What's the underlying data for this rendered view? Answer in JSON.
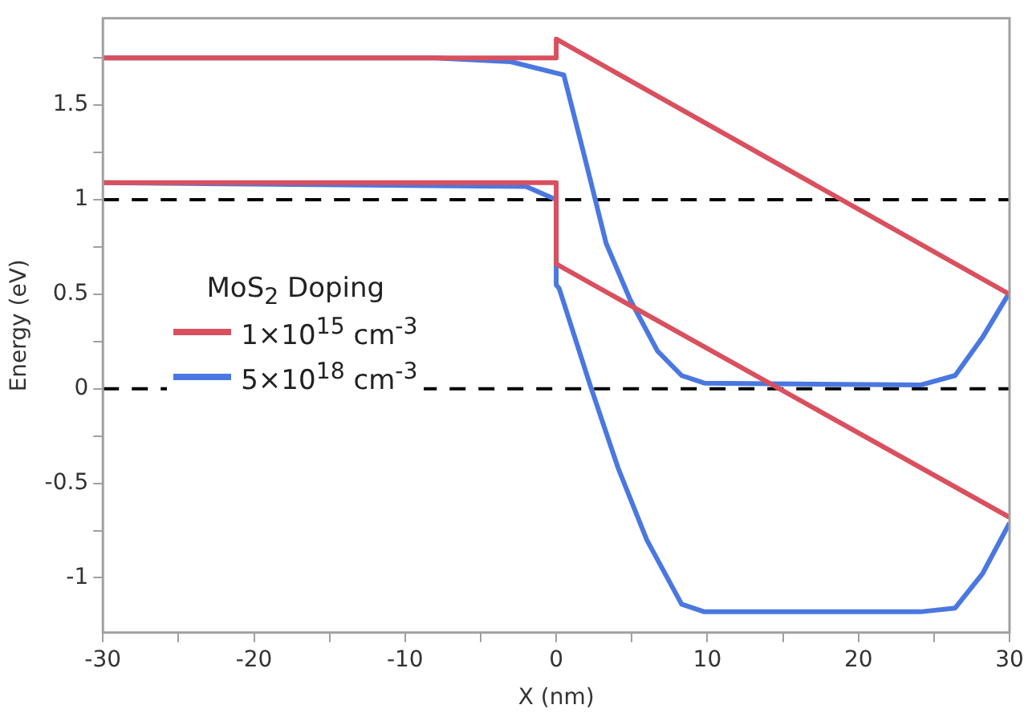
{
  "chart_data": {
    "type": "line",
    "xlabel": "X (nm)",
    "ylabel": "Energy (eV)",
    "legend_title": "MoS$_{2}$ Doping",
    "legend": "left",
    "xlim": [
      -30,
      30
    ],
    "ylim": [
      -1.29,
      1.96
    ],
    "xticks": [
      -30,
      {
        "value": -25,
        "label": null
      },
      -20,
      {
        "value": -15,
        "label": null
      },
      -10,
      {
        "value": -5,
        "label": null
      },
      0,
      {
        "value": 5,
        "label": null
      },
      10,
      {
        "value": 15,
        "label": null
      },
      20,
      {
        "value": 25,
        "label": null
      },
      30
    ],
    "yticks": [
      -1,
      {
        "value": -0.75,
        "label": null
      },
      -0.5,
      {
        "value": -0.25,
        "label": null
      },
      0,
      {
        "value": 0.25,
        "label": null
      },
      0.5,
      {
        "value": 0.75,
        "label": null
      },
      1,
      {
        "value": 1.25,
        "label": null
      },
      1.5,
      {
        "value": 1.75,
        "label": null
      }
    ],
    "series": [
      {
        "name": "1×10$^{15}$ cm$^{-3}$",
        "color": "#d9505f",
        "x": [
          -30,
          0,
          0,
          30
        ],
        "values": [
          1.75,
          1.75,
          1.85,
          0.5
        ]
      },
      {
        "color": "#d9505f",
        "x": [
          -30,
          0,
          0,
          30
        ],
        "values": [
          1.09,
          1.09,
          0.66,
          -0.68
        ]
      },
      {
        "name": "5×10$^{18}$ cm$^{-3}$",
        "color": "#4a78e0",
        "x": [
          -30,
          -8,
          -3,
          0,
          0.5,
          1.9,
          3.3,
          4.9,
          6.7,
          8.3,
          9.8,
          24.1,
          26.4,
          28.2,
          30
        ],
        "values": [
          1.75,
          1.75,
          1.73,
          1.67,
          1.66,
          1.22,
          0.77,
          0.47,
          0.2,
          0.07,
          0.03,
          0.02,
          0.07,
          0.27,
          0.51
        ]
      },
      {
        "color": "#4a78e0",
        "x": [
          -30,
          -2,
          0,
          0,
          0.2,
          2.2,
          4.1,
          6,
          8.3,
          9.8,
          24.1,
          26.4,
          28.2,
          30
        ],
        "values": [
          1.09,
          1.07,
          1.0,
          0.55,
          0.53,
          0.03,
          -0.42,
          -0.8,
          -1.14,
          -1.18,
          -1.18,
          -1.16,
          -0.98,
          -0.71
        ]
      }
    ],
    "ref_lines": [
      {
        "axis": "y",
        "value": 1,
        "color": "#000000",
        "line_style": "dashed"
      },
      {
        "axis": "y",
        "value": 0,
        "color": "#000000",
        "line_style": "dashed"
      }
    ]
  }
}
